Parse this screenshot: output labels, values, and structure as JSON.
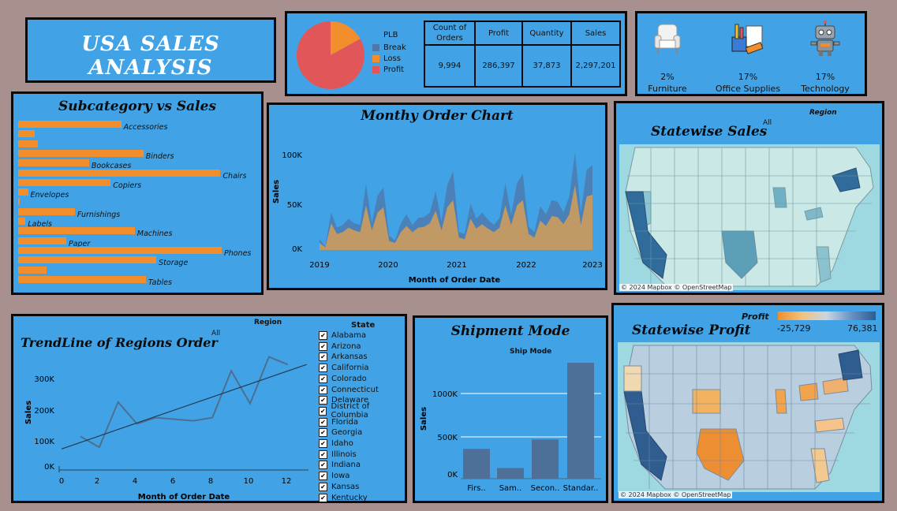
{
  "dashboard": {
    "title": "USA  SALES  ANALYSIS"
  },
  "plb": {
    "legend_title": "PLB",
    "legend": [
      {
        "label": "Break",
        "color": "#4e79a7"
      },
      {
        "label": "Loss",
        "color": "#f28e2b"
      },
      {
        "label": "Profit",
        "color": "#e15759"
      }
    ],
    "pie": [
      {
        "label": "Loss",
        "share": 0.17,
        "color": "#f28e2b"
      },
      {
        "label": "Profit",
        "share": 0.83,
        "color": "#e15759"
      }
    ]
  },
  "kpis": {
    "headers": [
      "Count of Orders",
      "Profit",
      "Quantity",
      "Sales"
    ],
    "values": [
      "9,994",
      "286,397",
      "37,873",
      "2,297,201"
    ]
  },
  "categories": [
    {
      "pct": "2%",
      "name": "Furniture",
      "icon": "armchair-icon"
    },
    {
      "pct": "17%",
      "name": "Office Supplies",
      "icon": "office-supplies-icon"
    },
    {
      "pct": "17%",
      "name": "Technology",
      "icon": "robot-icon"
    }
  ],
  "subcategory": {
    "title": "Subcategory vs Sales",
    "items": [
      {
        "label": "Accessories",
        "value": 167000
      },
      {
        "label": "",
        "value": 27000
      },
      {
        "label": "",
        "value": 32000
      },
      {
        "label": "Binders",
        "value": 203000
      },
      {
        "label": "Bookcases",
        "value": 115000
      },
      {
        "label": "Chairs",
        "value": 328000
      },
      {
        "label": "Copiers",
        "value": 150000
      },
      {
        "label": "Envelopes",
        "value": 16000
      },
      {
        "label": "",
        "value": 3000
      },
      {
        "label": "Furnishings",
        "value": 92000
      },
      {
        "label": "Labels",
        "value": 12000
      },
      {
        "label": "Machines",
        "value": 189000
      },
      {
        "label": "Paper",
        "value": 78000
      },
      {
        "label": "Phones",
        "value": 330000
      },
      {
        "label": "Storage",
        "value": 224000
      },
      {
        "label": "",
        "value": 46000
      },
      {
        "label": "Tables",
        "value": 207000
      }
    ]
  },
  "monthly": {
    "title": "Monthy Order Chart",
    "xlabel": "Month of Order Date",
    "ylabel": "Sales",
    "yticks": [
      "0K",
      "50K",
      "100K"
    ],
    "xticks": [
      "2019",
      "2020",
      "2021",
      "2022",
      "2023"
    ]
  },
  "chart_data": [
    {
      "type": "area",
      "title": "Monthy Order Chart",
      "xlabel": "Month of Order Date",
      "ylabel": "Sales",
      "ylim": [
        0,
        115000
      ],
      "x": [
        "2019-01",
        "2019-02",
        "2019-03",
        "2019-04",
        "2019-05",
        "2019-06",
        "2019-07",
        "2019-08",
        "2019-09",
        "2019-10",
        "2019-11",
        "2019-12",
        "2020-01",
        "2020-02",
        "2020-03",
        "2020-04",
        "2020-05",
        "2020-06",
        "2020-07",
        "2020-08",
        "2020-09",
        "2020-10",
        "2020-11",
        "2020-12",
        "2021-01",
        "2021-02",
        "2021-03",
        "2021-04",
        "2021-05",
        "2021-06",
        "2021-07",
        "2021-08",
        "2021-09",
        "2021-10",
        "2021-11",
        "2021-12",
        "2022-01",
        "2022-02",
        "2022-03",
        "2022-04",
        "2022-05",
        "2022-06",
        "2022-07",
        "2022-08",
        "2022-09",
        "2022-10",
        "2022-11",
        "2022-12"
      ],
      "series": [
        {
          "name": "",
          "values": [
            12000,
            4000,
            42000,
            25000,
            28000,
            35000,
            30000,
            28000,
            74000,
            30000,
            61000,
            70000,
            16000,
            11000,
            30000,
            40000,
            28000,
            36000,
            37000,
            42000,
            66000,
            32000,
            73000,
            88000,
            20000,
            18000,
            52000,
            35000,
            42000,
            34000,
            28000,
            36000,
            75000,
            40000,
            75000,
            85000,
            26000,
            20000,
            49000,
            40000,
            56000,
            54000,
            42000,
            60000,
            110000,
            42000,
            90000,
            95000
          ]
        },
        {
          "name": "",
          "values": [
            8000,
            3000,
            30000,
            18000,
            20000,
            25000,
            22000,
            20000,
            50000,
            22000,
            42000,
            48000,
            10000,
            8000,
            20000,
            27000,
            20000,
            25000,
            26000,
            30000,
            44000,
            22000,
            48000,
            56000,
            14000,
            12000,
            35000,
            24000,
            29000,
            24000,
            20000,
            25000,
            50000,
            28000,
            50000,
            56000,
            18000,
            14000,
            33000,
            27000,
            38000,
            37000,
            29000,
            40000,
            73000,
            28000,
            60000,
            62000
          ]
        }
      ]
    },
    {
      "type": "line",
      "title": "TrendLine of Regions Order",
      "xlabel": "Month of Order Date",
      "ylabel": "Sales",
      "ylim": [
        0,
        380000
      ],
      "x": [
        1,
        2,
        3,
        4,
        5,
        6,
        7,
        8,
        9,
        10,
        11,
        12
      ],
      "series": [
        {
          "name": "",
          "values": [
            95000,
            60000,
            205000,
            135000,
            155000,
            150000,
            145000,
            155000,
            305000,
            200000,
            350000,
            325000
          ]
        }
      ]
    },
    {
      "type": "bar",
      "title": "Shipment Mode",
      "xlabel": "Ship Mode",
      "ylabel": "Sales",
      "ylim": [
        0,
        1350000
      ],
      "categories": [
        "Firs..",
        "Sam..",
        "Secon..",
        "Standar.."
      ],
      "values": [
        350000,
        125000,
        460000,
        1360000
      ]
    }
  ],
  "statewise_sales": {
    "title": "Statewise Sales",
    "region_label": "Region",
    "region_value": "All",
    "credit": "© 2024 Mapbox © OpenStreetMap"
  },
  "trend": {
    "title": "TrendLine of Regions Order",
    "region_label": "Region",
    "region_value": "All",
    "xlabel": "Month of Order Date",
    "ylabel": "Sales",
    "yticks": [
      "0K",
      "100K",
      "200K",
      "300K"
    ],
    "xticks": [
      "0",
      "2",
      "4",
      "6",
      "8",
      "10",
      "12"
    ],
    "state_label": "State",
    "states": [
      "Alabama",
      "Arizona",
      "Arkansas",
      "California",
      "Colorado",
      "Connecticut",
      "Delaware",
      "District of Columbia",
      "Florida",
      "Georgia",
      "Idaho",
      "Illinois",
      "Indiana",
      "Iowa",
      "Kansas",
      "Kentucky"
    ]
  },
  "shipment": {
    "title": "Shipment Mode",
    "xlabel": "Ship Mode",
    "ylabel": "Sales",
    "yticks": [
      "0K",
      "500K",
      "1000K"
    ],
    "categories": [
      "Firs..",
      "Sam..",
      "Secon..",
      "Standar.."
    ]
  },
  "statewise_profit": {
    "title": "Statewise Profit",
    "legend_title": "Profit",
    "min_label": "-25,729",
    "max_label": "76,381",
    "credit": "© 2024 Mapbox © OpenStreetMap"
  }
}
